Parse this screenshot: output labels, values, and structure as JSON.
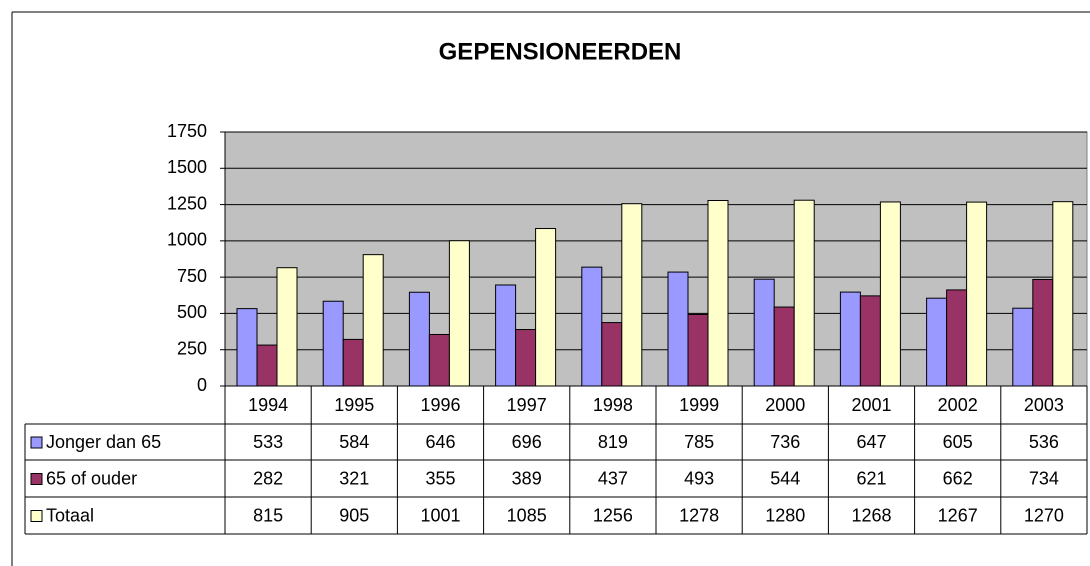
{
  "chart_data": {
    "type": "bar",
    "title": "GEPENSIONEERDEN",
    "categories": [
      "1994",
      "1995",
      "1996",
      "1997",
      "1998",
      "1999",
      "2000",
      "2001",
      "2002",
      "2003"
    ],
    "series": [
      {
        "name": "Jonger dan 65",
        "color": "#9999ff",
        "values": [
          533,
          584,
          646,
          696,
          819,
          785,
          736,
          647,
          605,
          536
        ]
      },
      {
        "name": "65 of ouder",
        "color": "#993366",
        "values": [
          282,
          321,
          355,
          389,
          437,
          493,
          544,
          621,
          662,
          734
        ]
      },
      {
        "name": "Totaal",
        "color": "#ffffcc",
        "values": [
          815,
          905,
          1001,
          1085,
          1256,
          1278,
          1280,
          1268,
          1267,
          1270
        ]
      }
    ],
    "ylim": [
      0,
      1750
    ],
    "yticks": [
      0,
      250,
      500,
      750,
      1000,
      1250,
      1500,
      1750
    ],
    "grid": true,
    "data_table": true
  }
}
